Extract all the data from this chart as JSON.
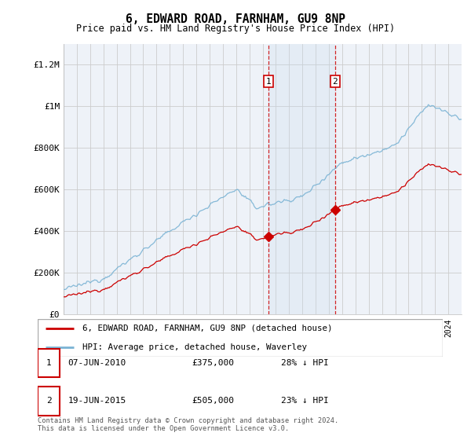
{
  "title": "6, EDWARD ROAD, FARNHAM, GU9 8NP",
  "subtitle": "Price paid vs. HM Land Registry's House Price Index (HPI)",
  "ylabel_ticks": [
    "£0",
    "£200K",
    "£400K",
    "£600K",
    "£800K",
    "£1M",
    "£1.2M"
  ],
  "ytick_values": [
    0,
    200000,
    400000,
    600000,
    800000,
    1000000,
    1200000
  ],
  "ylim": [
    0,
    1300000
  ],
  "hpi_color": "#7ab3d4",
  "price_color": "#cc0000",
  "grid_color": "#cccccc",
  "bg_color": "#ffffff",
  "plot_bg_color": "#eef2f8",
  "sale1_date_x": 2010.44,
  "sale1_price": 375000,
  "sale2_date_x": 2015.46,
  "sale2_price": 505000,
  "legend_label_price": "6, EDWARD ROAD, FARNHAM, GU9 8NP (detached house)",
  "legend_label_hpi": "HPI: Average price, detached house, Waverley",
  "footnote": "Contains HM Land Registry data © Crown copyright and database right 2024.\nThis data is licensed under the Open Government Licence v3.0.",
  "xlim_start": 1995,
  "xlim_end": 2025.0
}
